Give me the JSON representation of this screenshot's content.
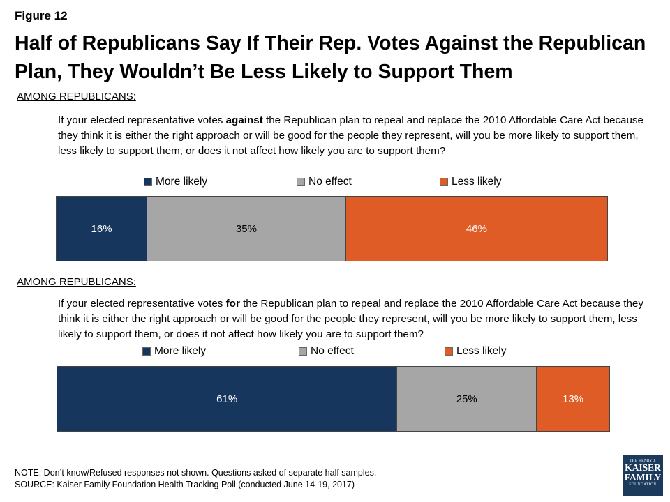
{
  "figure_label": "Figure 12",
  "title": "Half of Republicans Say If Their Rep. Votes Against the Republican Plan, They Wouldn’t Be Less Likely to Support Them",
  "colors": {
    "more_likely": "#17365d",
    "no_effect": "#a6a6a6",
    "less_likely": "#e05c26",
    "text_dark": "#000000",
    "text_light": "#ffffff"
  },
  "panel1": {
    "subtitle": "AMONG REPUBLICANS:",
    "question_pre": "If your elected representative votes ",
    "question_bold": "against",
    "question_post": " the Republican plan to repeal and replace the 2010 Affordable Care Act because they think it is either the right approach or will be good for the people they represent, will you be more likely to support them, less likely to support them, or does it not affect how likely you are to support them?"
  },
  "panel2": {
    "subtitle": "AMONG REPUBLICANS:",
    "question_pre": "If your elected representative votes ",
    "question_bold": "for",
    "question_post": " the Republican plan to repeal and replace the 2010 Affordable Care Act because they think it is either the right approach or will be good for the people they represent, will you be more likely to support them, less likely to support them, or does it not affect how likely you are to support them?"
  },
  "chart_data": [
    {
      "type": "bar",
      "stacked": true,
      "orientation": "horizontal",
      "categories": [
        ""
      ],
      "series": [
        {
          "name": "More likely",
          "values": [
            16
          ],
          "label": "16%"
        },
        {
          "name": "No effect",
          "values": [
            35
          ],
          "label": "35%"
        },
        {
          "name": "Less likely",
          "values": [
            46
          ],
          "label": "46%"
        }
      ],
      "legend": "top"
    },
    {
      "type": "bar",
      "stacked": true,
      "orientation": "horizontal",
      "categories": [
        ""
      ],
      "series": [
        {
          "name": "More likely",
          "values": [
            61
          ],
          "label": "61%"
        },
        {
          "name": "No effect",
          "values": [
            25
          ],
          "label": "25%"
        },
        {
          "name": "Less likely",
          "values": [
            13
          ],
          "label": "13%"
        }
      ],
      "legend": "top"
    }
  ],
  "note": "NOTE: Don’t know/Refused responses not shown. Questions asked of separate half samples.",
  "source": "SOURCE: Kaiser Family Foundation Health Tracking Poll (conducted June 14-19, 2017)",
  "logo": {
    "line1": "THE HENRY J.",
    "line2": "KAISER",
    "line3": "FAMILY",
    "line4": "FOUNDATION"
  }
}
